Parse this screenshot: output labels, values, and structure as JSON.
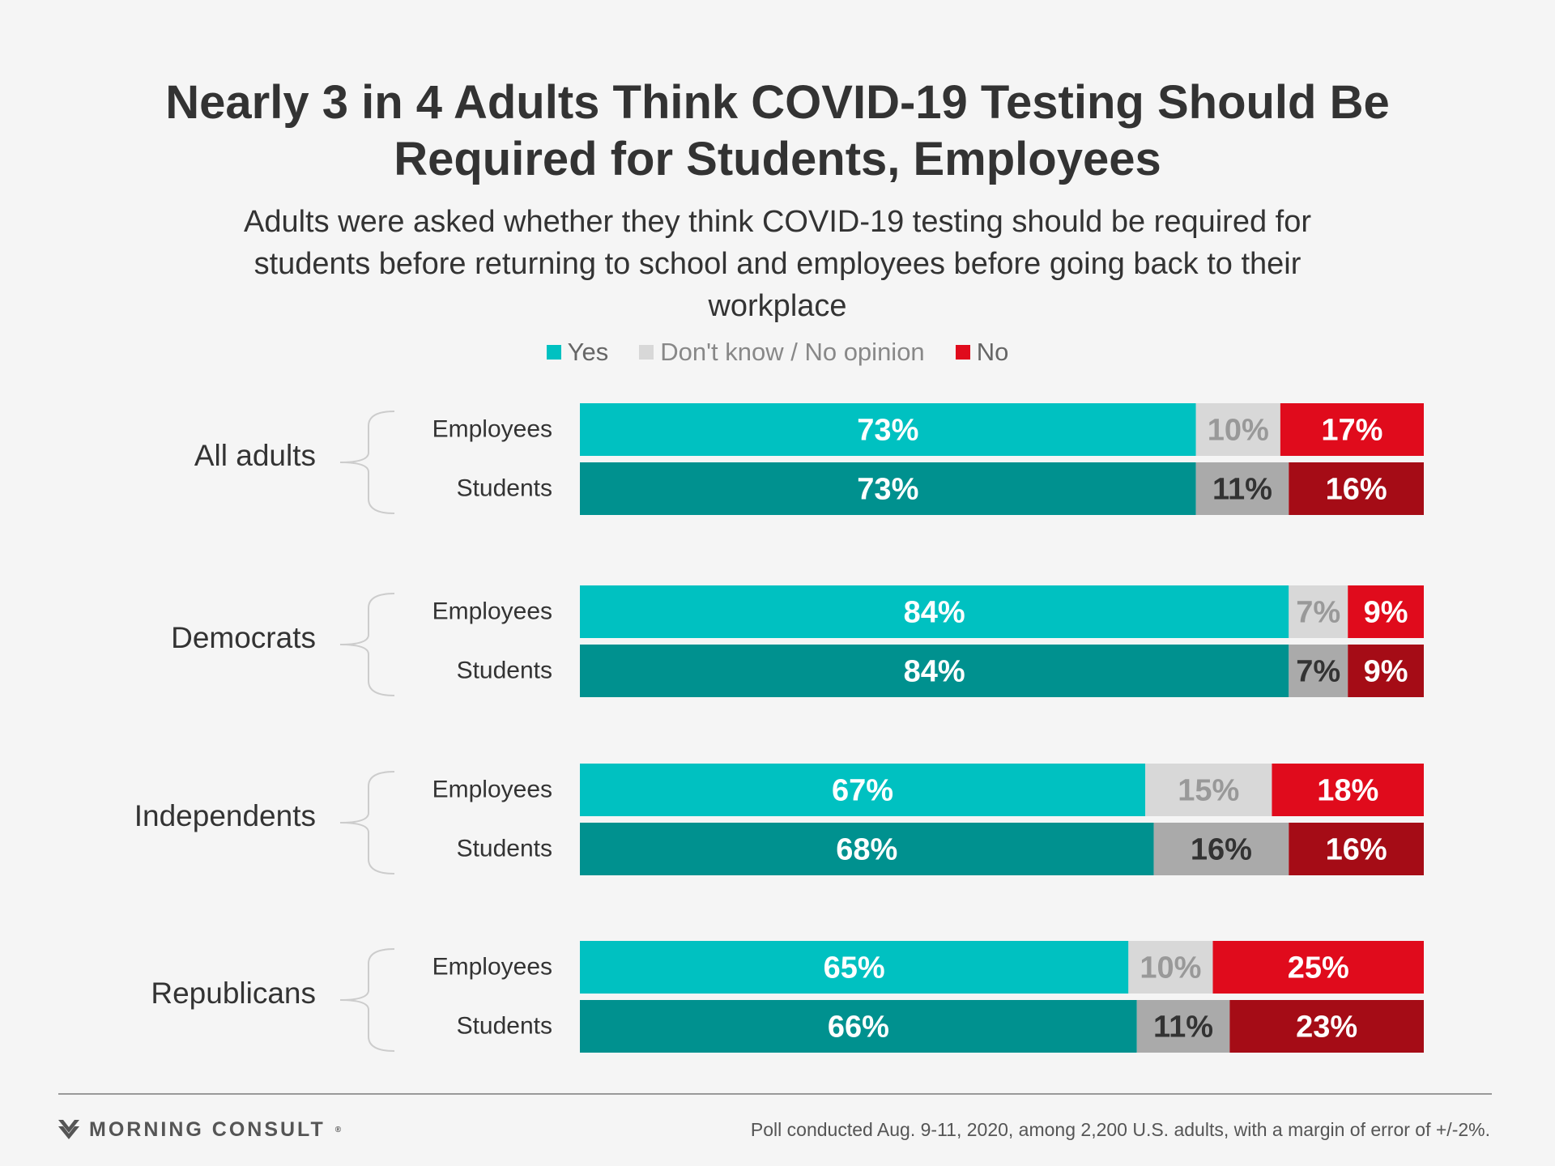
{
  "title_lines": [
    "Nearly 3 in 4 Adults Think COVID-19 Testing Should Be",
    "Required for Students, Employees"
  ],
  "subtitle_lines": [
    "Adults were asked whether they think COVID-19 testing should be required for",
    "students before returning to school and employees before going back to their",
    "workplace"
  ],
  "legend": [
    {
      "label": "Yes",
      "color": "#00c1c1"
    },
    {
      "label": "Don't know / No opinion",
      "color": "#d8d8d8"
    },
    {
      "label": "No",
      "color": "#e00b1c"
    }
  ],
  "footer": {
    "brand": "MORNING CONSULT",
    "note": "Poll conducted Aug. 9-11, 2020, among 2,200 U.S. adults, with a margin of error of +/-2%."
  },
  "chart_data": {
    "type": "bar",
    "orientation": "horizontal",
    "stacked": true,
    "xlim": [
      0,
      100
    ],
    "series_names": [
      "Yes",
      "Don't know / No opinion",
      "No"
    ],
    "colors": {
      "Employees": [
        "#00c1c1",
        "#d8d8d8",
        "#e00b1c"
      ],
      "Students": [
        "#00918f",
        "#aaaaaa",
        "#a50c16"
      ]
    },
    "label_colors": {
      "Employees": [
        "#ffffff",
        "#999999",
        "#ffffff"
      ],
      "Students": [
        "#ffffff",
        "#333333",
        "#ffffff"
      ]
    },
    "groups": [
      {
        "name": "All adults",
        "rows": [
          {
            "label": "Employees",
            "values": [
              73,
              10,
              17
            ]
          },
          {
            "label": "Students",
            "values": [
              73,
              11,
              16
            ]
          }
        ]
      },
      {
        "name": "Democrats",
        "rows": [
          {
            "label": "Employees",
            "values": [
              84,
              7,
              9
            ]
          },
          {
            "label": "Students",
            "values": [
              84,
              7,
              9
            ]
          }
        ]
      },
      {
        "name": "Independents",
        "rows": [
          {
            "label": "Employees",
            "values": [
              67,
              15,
              18
            ]
          },
          {
            "label": "Students",
            "values": [
              68,
              16,
              16
            ]
          }
        ]
      },
      {
        "name": "Republicans",
        "rows": [
          {
            "label": "Employees",
            "values": [
              65,
              10,
              25
            ]
          },
          {
            "label": "Students",
            "values": [
              66,
              11,
              23
            ]
          }
        ]
      }
    ]
  }
}
